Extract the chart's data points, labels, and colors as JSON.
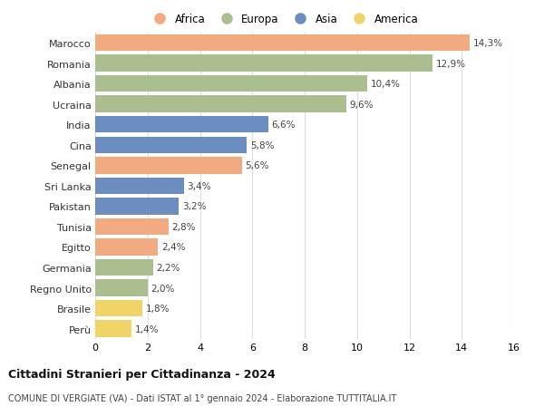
{
  "countries": [
    "Marocco",
    "Romania",
    "Albania",
    "Ucraina",
    "India",
    "Cina",
    "Senegal",
    "Sri Lanka",
    "Pakistan",
    "Tunisia",
    "Egitto",
    "Germania",
    "Regno Unito",
    "Brasile",
    "Perù"
  ],
  "values": [
    14.3,
    12.9,
    10.4,
    9.6,
    6.6,
    5.8,
    5.6,
    3.4,
    3.2,
    2.8,
    2.4,
    2.2,
    2.0,
    1.8,
    1.4
  ],
  "labels": [
    "14,3%",
    "12,9%",
    "10,4%",
    "9,6%",
    "6,6%",
    "5,8%",
    "5,6%",
    "3,4%",
    "3,2%",
    "2,8%",
    "2,4%",
    "2,2%",
    "2,0%",
    "1,8%",
    "1,4%"
  ],
  "continents": [
    "Africa",
    "Europa",
    "Europa",
    "Europa",
    "Asia",
    "Asia",
    "Africa",
    "Asia",
    "Asia",
    "Africa",
    "Africa",
    "Europa",
    "Europa",
    "America",
    "America"
  ],
  "colors": {
    "Africa": "#F2AA80",
    "Europa": "#ABBE90",
    "Asia": "#6B8DC0",
    "America": "#F0D468"
  },
  "legend_order": [
    "Africa",
    "Europa",
    "Asia",
    "America"
  ],
  "xlim": [
    0,
    16
  ],
  "xticks": [
    0,
    2,
    4,
    6,
    8,
    10,
    12,
    14,
    16
  ],
  "title": "Cittadini Stranieri per Cittadinanza - 2024",
  "subtitle": "COMUNE DI VERGIATE (VA) - Dati ISTAT al 1° gennaio 2024 - Elaborazione TUTTITALIA.IT",
  "bg_color": "#ffffff",
  "grid_color": "#dddddd",
  "bar_height": 0.82
}
